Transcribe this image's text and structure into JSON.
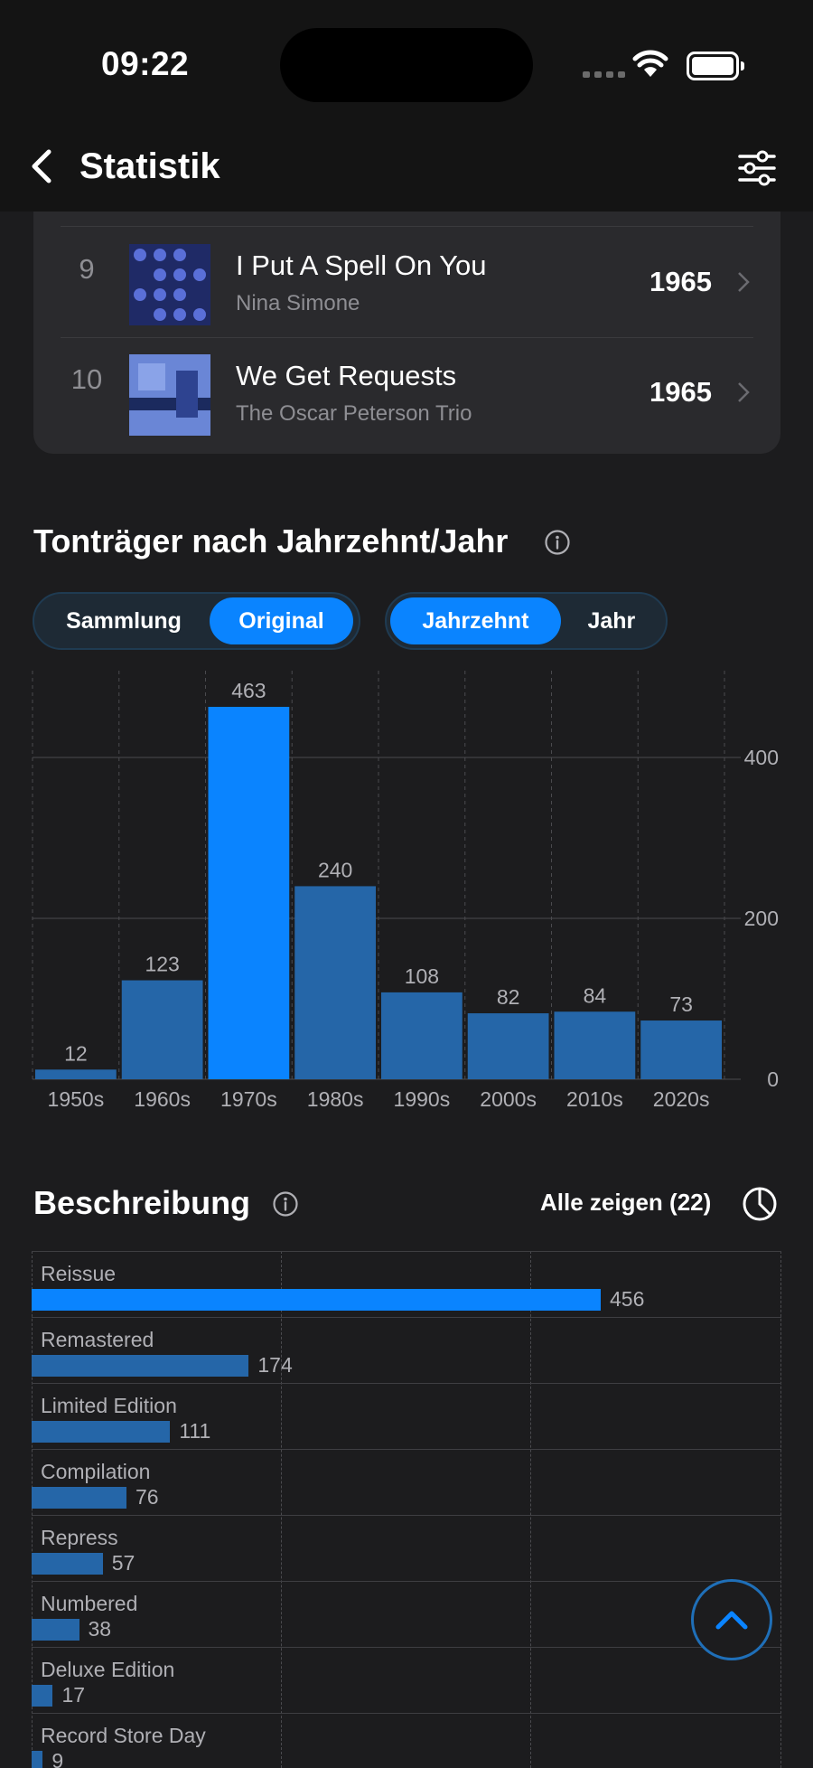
{
  "status_bar": {
    "time": "09:22"
  },
  "nav": {
    "title": "Statistik"
  },
  "ranking": [
    {
      "rank": "9",
      "title": "I Put A Spell On You",
      "artist": "Nina Simone",
      "year": "1965"
    },
    {
      "rank": "10",
      "title": "We Get Requests",
      "artist": "The Oscar Peterson Trio",
      "year": "1965"
    }
  ],
  "decade_section": {
    "title": "Tonträger nach Jahrzehnt/Jahr",
    "source_toggle": {
      "options": [
        "Sammlung",
        "Original"
      ],
      "selected": "Original"
    },
    "period_toggle": {
      "options": [
        "Jahrzehnt",
        "Jahr"
      ],
      "selected": "Jahrzehnt"
    }
  },
  "chart_data": {
    "type": "bar",
    "categories": [
      "1950s",
      "1960s",
      "1970s",
      "1980s",
      "1990s",
      "2000s",
      "2010s",
      "2020s"
    ],
    "values": [
      12,
      123,
      463,
      240,
      108,
      82,
      84,
      73
    ],
    "yticks": [
      0,
      200,
      400
    ],
    "ylim": [
      0,
      463
    ],
    "highlighted": "1970s",
    "colors": {
      "bar": "#2566a8",
      "highlight": "#0a84ff"
    },
    "grid": true
  },
  "description_section": {
    "title": "Beschreibung",
    "show_all": "Alle zeigen (22)",
    "items": [
      {
        "label": "Reissue",
        "value": 456
      },
      {
        "label": "Remastered",
        "value": 174
      },
      {
        "label": "Limited Edition",
        "value": 111
      },
      {
        "label": "Compilation",
        "value": 76
      },
      {
        "label": "Repress",
        "value": 57
      },
      {
        "label": "Numbered",
        "value": 38
      },
      {
        "label": "Deluxe Edition",
        "value": 17
      },
      {
        "label": "Record Store Day",
        "value": 9
      }
    ],
    "max": 456
  }
}
